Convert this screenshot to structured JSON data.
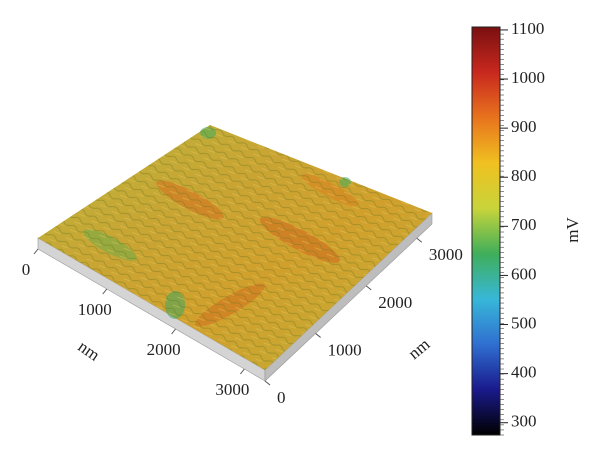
{
  "chart_data": {
    "type": "surface3d",
    "x_label": "nm",
    "y_label": "nm",
    "colorbar_label": "mV",
    "xlim": [
      0,
      3300
    ],
    "xticks": [
      0,
      1000,
      2000,
      3000
    ],
    "ylim": [
      0,
      3300
    ],
    "yticks": [
      0,
      1000,
      2000,
      3000
    ],
    "clim": [
      275,
      1106
    ],
    "cticks": [
      300,
      400,
      500,
      600,
      700,
      800,
      900,
      1000,
      1100
    ],
    "colormap": [
      "#000000",
      "#1a1a8c",
      "#2f6fd0",
      "#38b7d8",
      "#3fae5a",
      "#c8d43a",
      "#f0c020",
      "#e8731e",
      "#c8281e",
      "#7a1010"
    ]
  }
}
